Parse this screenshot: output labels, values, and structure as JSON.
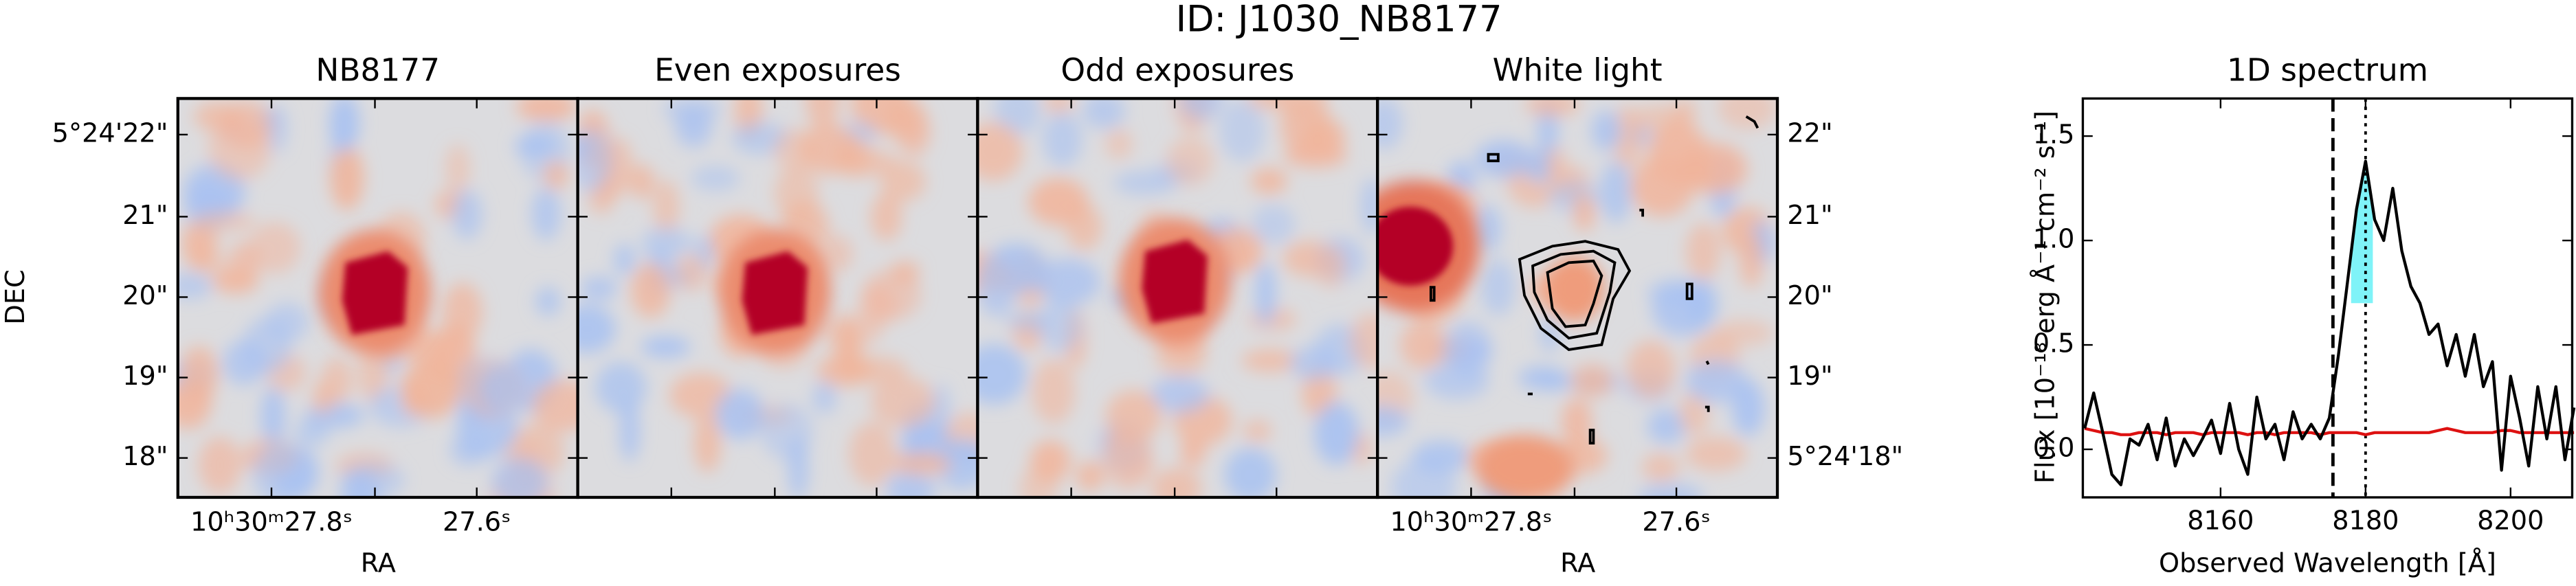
{
  "title": "ID: J1030_NB8177",
  "panels": [
    {
      "title": "NB8177"
    },
    {
      "title": "Even exposures"
    },
    {
      "title": "Odd exposures"
    },
    {
      "title": "White light"
    }
  ],
  "dec_left": {
    "label": "DEC",
    "ticks": [
      "5°24'22\"",
      "21\"",
      "20\"",
      "19\"",
      "18\""
    ]
  },
  "dec_right": {
    "ticks": [
      "22\"",
      "21\"",
      "20\"",
      "19\"",
      "5°24'18\""
    ]
  },
  "ra_axes": [
    {
      "ticks": [
        "10ʰ30ᵐ27.8ˢ",
        "27.6ˢ"
      ],
      "label": "RA"
    },
    {
      "ticks": [
        "10ʰ30ᵐ27.8ˢ",
        "27.6ˢ"
      ],
      "label": "RA"
    }
  ],
  "chart_data": {
    "type": "line",
    "title": "1D spectrum",
    "x_label": "Observed Wavelength [Å]",
    "y_label": "Flux [10⁻¹⁸ erg Å⁻¹ cm⁻² s⁻¹]",
    "x": [
      8141.25,
      8142.5,
      8143.75,
      8145.0,
      8146.25,
      8147.5,
      8148.75,
      8150.0,
      8151.25,
      8152.5,
      8153.75,
      8155.0,
      8156.25,
      8157.5,
      8158.75,
      8160.0,
      8161.25,
      8162.5,
      8163.75,
      8165.0,
      8166.25,
      8167.5,
      8168.75,
      8170.0,
      8171.25,
      8172.5,
      8173.75,
      8175.0,
      8176.25,
      8177.5,
      8178.75,
      8180.0,
      8181.25,
      8182.5,
      8183.75,
      8185.0,
      8186.25,
      8187.5,
      8188.75,
      8190.0,
      8191.25,
      8192.5,
      8193.75,
      8195.0,
      8196.25,
      8197.5,
      8198.75,
      8200.0,
      8201.25,
      8202.5,
      8203.75,
      8205.0,
      8206.25,
      8207.5,
      8208.75
    ],
    "series": [
      {
        "color": "#000000",
        "values": [
          0.1,
          0.27,
          0.08,
          -0.12,
          -0.17,
          0.05,
          0.02,
          0.12,
          -0.05,
          0.15,
          -0.08,
          0.05,
          -0.03,
          0.05,
          0.14,
          -0.02,
          0.22,
          0.0,
          -0.12,
          0.25,
          0.05,
          0.12,
          -0.05,
          0.18,
          0.05,
          0.12,
          0.05,
          0.15,
          0.45,
          0.8,
          1.15,
          1.38,
          1.1,
          1.0,
          1.25,
          0.95,
          0.78,
          0.7,
          0.55,
          0.6,
          0.4,
          0.55,
          0.35,
          0.55,
          0.3,
          0.42,
          -0.1,
          0.35,
          0.15,
          -0.08,
          0.3,
          0.05,
          0.3,
          -0.05,
          0.2
        ]
      },
      {
        "color": "#dd1111",
        "values": [
          0.1,
          0.09,
          0.08,
          0.08,
          0.07,
          0.07,
          0.08,
          0.08,
          0.08,
          0.07,
          0.08,
          0.08,
          0.08,
          0.07,
          0.08,
          0.08,
          0.08,
          0.08,
          0.07,
          0.08,
          0.08,
          0.07,
          0.08,
          0.08,
          0.08,
          0.08,
          0.07,
          0.08,
          0.08,
          0.08,
          0.08,
          0.07,
          0.08,
          0.08,
          0.08,
          0.08,
          0.08,
          0.08,
          0.08,
          0.09,
          0.1,
          0.09,
          0.08,
          0.08,
          0.08,
          0.08,
          0.09,
          0.09,
          0.08,
          0.08,
          0.08,
          0.08,
          0.08,
          0.08,
          0.08
        ]
      }
    ],
    "vlines": [
      {
        "x": 8175.5,
        "style": "dashed"
      },
      {
        "x": 8180,
        "style": "dotted"
      }
    ],
    "highlight": {
      "xrange": [
        8178,
        8181
      ],
      "ymin": 0.7,
      "color": "#7ff3f8"
    },
    "xlim": [
      8141,
      8208.5
    ],
    "ylim": [
      -0.23,
      1.68
    ],
    "xticks": [
      8160,
      8180,
      8200
    ],
    "yticks": [
      {
        "value": 0,
        "label": "0.0"
      },
      {
        "value": 0.5,
        "label": "0.5"
      },
      {
        "value": 1,
        "label": "1.0"
      },
      {
        "value": 1.5,
        "label": "1.5"
      }
    ]
  }
}
